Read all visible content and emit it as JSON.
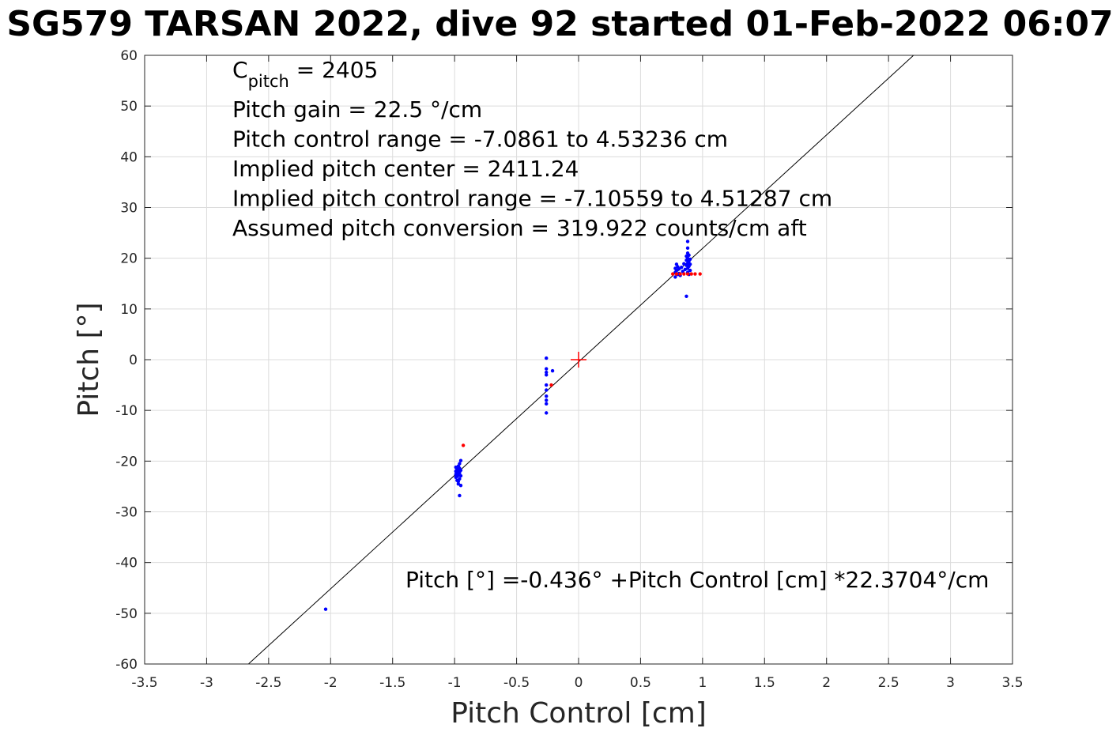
{
  "chart_data": {
    "type": "scatter",
    "title": "SG579 TARSAN 2022, dive 92 started 01-Feb-2022 06:07",
    "xlabel": "Pitch Control [cm]",
    "ylabel": "Pitch [°]",
    "xlim": [
      -3.5,
      3.5
    ],
    "ylim": [
      -60,
      60
    ],
    "xticks": [
      -3.5,
      -3,
      -2.5,
      -2,
      -1.5,
      -1,
      -0.5,
      0,
      0.5,
      1,
      1.5,
      2,
      2.5,
      3,
      3.5
    ],
    "xtick_labels": [
      "-3.5",
      "-3",
      "-2.5",
      "-2",
      "-1.5",
      "-1",
      "-0.5",
      "0",
      "0.5",
      "1",
      "1.5",
      "2",
      "2.5",
      "3",
      "3.5"
    ],
    "yticks": [
      -60,
      -50,
      -40,
      -30,
      -20,
      -10,
      0,
      10,
      20,
      30,
      40,
      50,
      60
    ],
    "ytick_labels": [
      "-60",
      "-50",
      "-40",
      "-30",
      "-20",
      "-10",
      "0",
      "10",
      "20",
      "30",
      "40",
      "50",
      "60"
    ],
    "grid": true,
    "annotations": {
      "c_pitch_prefix": "C",
      "c_pitch_sub": "pitch",
      "c_pitch_value": " = 2405",
      "lines": [
        "Pitch gain = 22.5 °/cm",
        "Pitch control range = -7.0861 to 4.53236 cm",
        "Implied pitch center = 2411.24",
        "Implied pitch control range = -7.10559 to 4.51287 cm",
        "Assumed pitch conversion = 319.922 counts/cm aft"
      ],
      "fit_equation": "Pitch [°] =-0.436° +Pitch Control [cm] *22.3704°/cm"
    },
    "fit_line": {
      "intercept": -0.436,
      "slope": 22.3704
    },
    "center_marker": {
      "x": 0,
      "y": 0
    },
    "series": [
      {
        "color": "#0000ff",
        "points": [
          [
            -2.04,
            -49.2
          ],
          [
            -0.99,
            -21.2
          ],
          [
            -0.99,
            -22.0
          ],
          [
            -0.99,
            -22.6
          ],
          [
            -0.99,
            -23.2
          ],
          [
            -0.98,
            -21.6
          ],
          [
            -0.98,
            -22.4
          ],
          [
            -0.98,
            -23.0
          ],
          [
            -0.98,
            -23.8
          ],
          [
            -0.97,
            -21.0
          ],
          [
            -0.97,
            -21.9
          ],
          [
            -0.97,
            -22.8
          ],
          [
            -0.97,
            -24.0
          ],
          [
            -0.96,
            -20.5
          ],
          [
            -0.96,
            -21.4
          ],
          [
            -0.96,
            -22.3
          ],
          [
            -0.96,
            -23.5
          ],
          [
            -0.95,
            -19.9
          ],
          [
            -0.95,
            -21.8
          ],
          [
            -0.95,
            -22.9
          ],
          [
            -0.95,
            -24.8
          ],
          [
            -0.96,
            -26.8
          ],
          [
            -0.97,
            -24.5
          ],
          [
            -0.26,
            0.3
          ],
          [
            -0.26,
            -1.8
          ],
          [
            -0.26,
            -2.5
          ],
          [
            -0.26,
            -3.0
          ],
          [
            -0.26,
            -5.0
          ],
          [
            -0.26,
            -6.0
          ],
          [
            -0.26,
            -7.2
          ],
          [
            -0.26,
            -8.0
          ],
          [
            -0.26,
            -8.7
          ],
          [
            -0.26,
            -10.5
          ],
          [
            -0.21,
            -2.2
          ],
          [
            0.78,
            16.3
          ],
          [
            0.78,
            17.2
          ],
          [
            0.78,
            18.0
          ],
          [
            0.79,
            18.8
          ],
          [
            0.79,
            17.6
          ],
          [
            0.8,
            16.8
          ],
          [
            0.8,
            18.3
          ],
          [
            0.81,
            17.0
          ],
          [
            0.81,
            17.9
          ],
          [
            0.82,
            16.6
          ],
          [
            0.83,
            18.2
          ],
          [
            0.84,
            17.4
          ],
          [
            0.85,
            18.9
          ],
          [
            0.86,
            17.8
          ],
          [
            0.87,
            18.6
          ],
          [
            0.87,
            19.6
          ],
          [
            0.87,
            20.4
          ],
          [
            0.88,
            17.2
          ],
          [
            0.88,
            18.0
          ],
          [
            0.88,
            19.0
          ],
          [
            0.88,
            20.0
          ],
          [
            0.88,
            21.0
          ],
          [
            0.88,
            22.0
          ],
          [
            0.88,
            23.3
          ],
          [
            0.89,
            18.4
          ],
          [
            0.89,
            19.4
          ],
          [
            0.89,
            20.6
          ],
          [
            0.89,
            16.8
          ],
          [
            0.9,
            17.6
          ],
          [
            0.9,
            18.8
          ],
          [
            0.9,
            19.8
          ],
          [
            0.87,
            12.5
          ]
        ]
      },
      {
        "color": "#ff0000",
        "points": [
          [
            -0.93,
            -16.9
          ],
          [
            -0.22,
            -5.0
          ],
          [
            0.76,
            16.9
          ],
          [
            0.79,
            16.9
          ],
          [
            0.82,
            16.9
          ],
          [
            0.85,
            16.9
          ],
          [
            0.88,
            16.9
          ],
          [
            0.91,
            16.9
          ],
          [
            0.94,
            16.9
          ],
          [
            0.98,
            16.9
          ]
        ]
      }
    ]
  }
}
